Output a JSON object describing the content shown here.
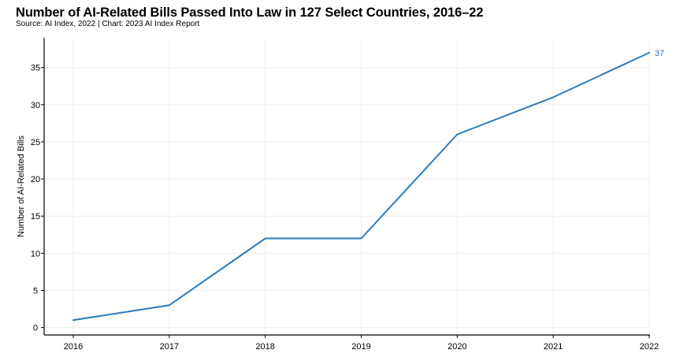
{
  "chart_data": {
    "type": "line",
    "title": "Number of AI-Related Bills Passed Into Law in 127 Select Countries, 2016–22",
    "subtitle": "Source: AI Index, 2022 | Chart: 2023 AI Index Report",
    "xlabel": "",
    "ylabel": "Number of AI-Related Bills",
    "categories": [
      "2016",
      "2017",
      "2018",
      "2019",
      "2020",
      "2021",
      "2022"
    ],
    "series": [
      {
        "values": [
          1,
          3,
          12,
          12,
          26,
          31,
          37
        ]
      }
    ],
    "end_label": "37",
    "yticks": [
      "0",
      "5",
      "10",
      "15",
      "20",
      "25",
      "30",
      "35"
    ],
    "ylim": [
      -1,
      39
    ],
    "grid": true,
    "line_color": "#2b7bba",
    "grid_color": "#eeeeee"
  }
}
